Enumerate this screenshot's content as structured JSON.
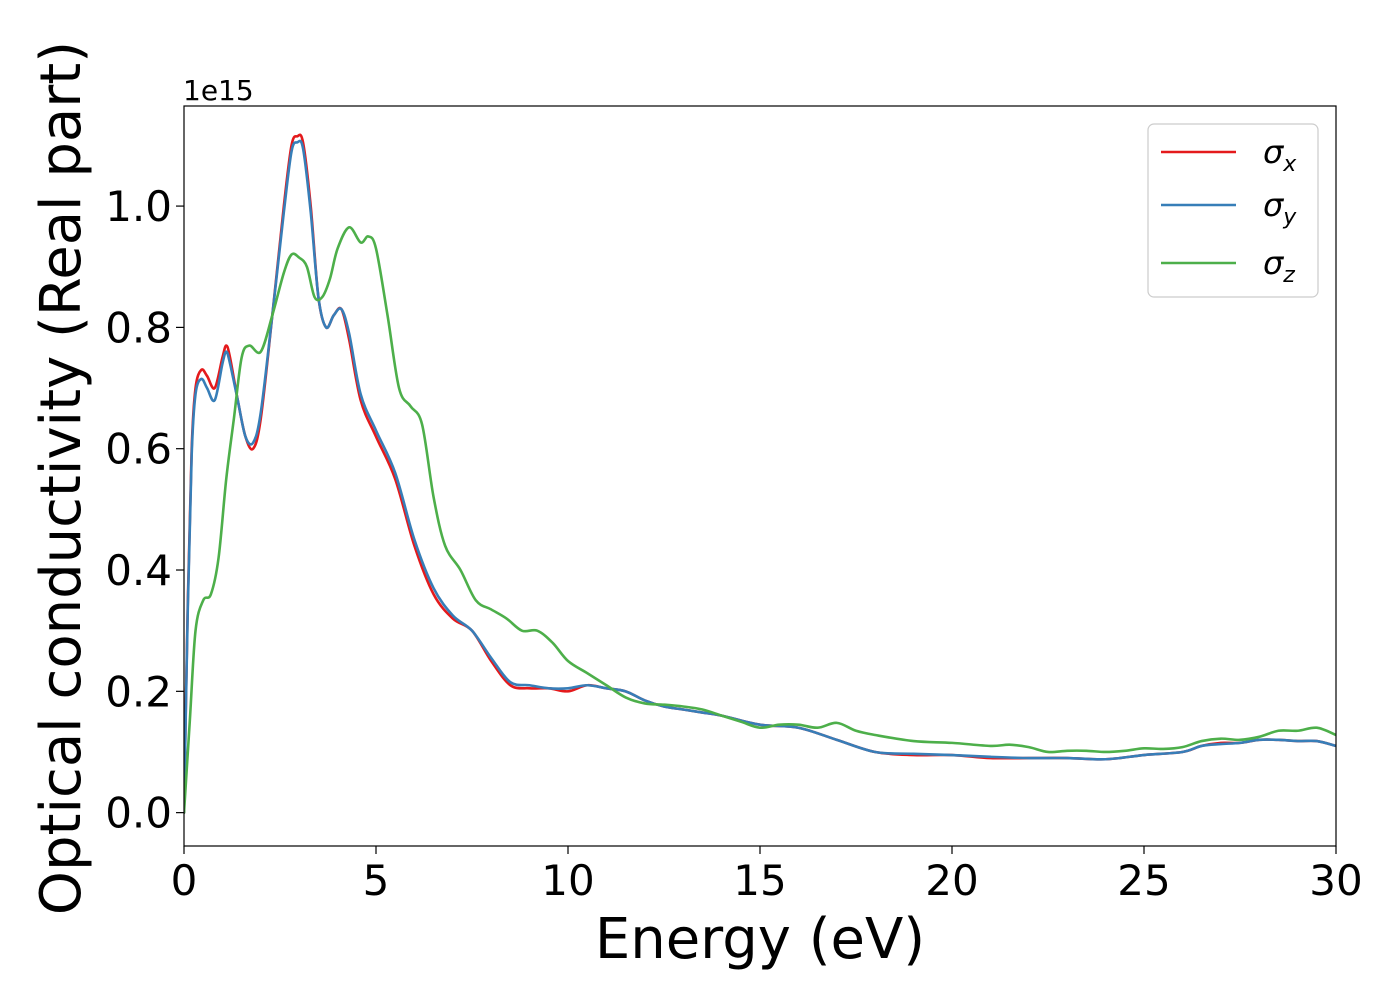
{
  "chart_data": {
    "type": "line",
    "xlabel": "Energy (eV)",
    "ylabel": "Optical conductivity (Real part)",
    "y_offset_text": "1e15",
    "xlim": [
      0,
      30
    ],
    "ylim": [
      -0.055,
      1.165
    ],
    "x_ticks": [
      0,
      5,
      10,
      15,
      20,
      25,
      30
    ],
    "x_tick_labels": [
      "0",
      "5",
      "10",
      "15",
      "20",
      "25",
      "30"
    ],
    "y_ticks": [
      0.0,
      0.2,
      0.4,
      0.6,
      0.8,
      1.0
    ],
    "y_tick_labels": [
      "0.0",
      "0.2",
      "0.4",
      "0.6",
      "0.8",
      "1.0"
    ],
    "grid": false,
    "legend_position": "top-right",
    "series": [
      {
        "name": "σx",
        "symbol": "σ",
        "subscript": "x",
        "color": "#e41a1c",
        "x": [
          0,
          0.1,
          0.2,
          0.3,
          0.45,
          0.6,
          0.8,
          1.0,
          1.1,
          1.2,
          1.4,
          1.6,
          1.8,
          2.0,
          2.3,
          2.6,
          2.8,
          2.95,
          3.1,
          3.3,
          3.5,
          3.7,
          3.9,
          4.1,
          4.3,
          4.6,
          5.0,
          5.5,
          6.0,
          6.5,
          7.0,
          7.5,
          8.0,
          8.5,
          9.0,
          9.5,
          10.0,
          10.5,
          11.0,
          11.5,
          12.0,
          12.5,
          13.0,
          13.5,
          14.0,
          15.0,
          16.0,
          17.0,
          18.0,
          19.0,
          20.0,
          21.0,
          22.0,
          23.0,
          24.0,
          25.0,
          26.0,
          26.5,
          27.0,
          27.5,
          28.0,
          28.5,
          29.0,
          29.5,
          30.0
        ],
        "y": [
          0.0,
          0.35,
          0.6,
          0.7,
          0.73,
          0.72,
          0.7,
          0.75,
          0.77,
          0.75,
          0.68,
          0.62,
          0.6,
          0.65,
          0.82,
          1.0,
          1.1,
          1.115,
          1.105,
          1.0,
          0.85,
          0.8,
          0.82,
          0.83,
          0.78,
          0.68,
          0.62,
          0.55,
          0.44,
          0.36,
          0.32,
          0.3,
          0.25,
          0.21,
          0.205,
          0.205,
          0.2,
          0.21,
          0.205,
          0.2,
          0.185,
          0.175,
          0.17,
          0.165,
          0.16,
          0.145,
          0.14,
          0.12,
          0.1,
          0.095,
          0.095,
          0.09,
          0.09,
          0.09,
          0.088,
          0.095,
          0.1,
          0.11,
          0.115,
          0.115,
          0.12,
          0.12,
          0.118,
          0.118,
          0.11
        ]
      },
      {
        "name": "σy",
        "symbol": "σ",
        "subscript": "y",
        "color": "#377eb8",
        "x": [
          0,
          0.1,
          0.2,
          0.3,
          0.45,
          0.6,
          0.8,
          1.0,
          1.1,
          1.2,
          1.4,
          1.6,
          1.8,
          2.0,
          2.3,
          2.6,
          2.8,
          2.95,
          3.1,
          3.3,
          3.5,
          3.7,
          3.9,
          4.1,
          4.3,
          4.6,
          5.0,
          5.5,
          6.0,
          6.5,
          7.0,
          7.5,
          8.0,
          8.5,
          9.0,
          9.5,
          10.0,
          10.5,
          11.0,
          11.5,
          12.0,
          12.5,
          13.0,
          13.5,
          14.0,
          15.0,
          16.0,
          17.0,
          18.0,
          19.0,
          20.0,
          21.0,
          22.0,
          23.0,
          24.0,
          25.0,
          26.0,
          26.5,
          27.0,
          27.5,
          28.0,
          28.5,
          29.0,
          29.5,
          30.0
        ],
        "y": [
          0.0,
          0.34,
          0.59,
          0.69,
          0.715,
          0.7,
          0.68,
          0.74,
          0.76,
          0.74,
          0.68,
          0.62,
          0.61,
          0.66,
          0.82,
          0.99,
          1.09,
          1.105,
          1.095,
          0.99,
          0.85,
          0.8,
          0.82,
          0.83,
          0.79,
          0.69,
          0.63,
          0.56,
          0.45,
          0.37,
          0.325,
          0.3,
          0.255,
          0.215,
          0.21,
          0.205,
          0.205,
          0.21,
          0.205,
          0.2,
          0.185,
          0.175,
          0.17,
          0.165,
          0.16,
          0.145,
          0.14,
          0.12,
          0.1,
          0.097,
          0.095,
          0.092,
          0.09,
          0.09,
          0.088,
          0.095,
          0.1,
          0.11,
          0.113,
          0.115,
          0.12,
          0.12,
          0.118,
          0.118,
          0.11
        ]
      },
      {
        "name": "σz",
        "symbol": "σ",
        "subscript": "z",
        "color": "#4daf4a",
        "x": [
          0,
          0.15,
          0.3,
          0.5,
          0.7,
          0.9,
          1.1,
          1.3,
          1.5,
          1.7,
          2.0,
          2.3,
          2.6,
          2.8,
          3.0,
          3.2,
          3.4,
          3.6,
          3.8,
          4.0,
          4.3,
          4.6,
          4.8,
          5.0,
          5.3,
          5.6,
          5.9,
          6.2,
          6.5,
          6.8,
          7.2,
          7.6,
          8.0,
          8.4,
          8.8,
          9.2,
          9.6,
          10.0,
          10.5,
          11.0,
          11.5,
          12.0,
          12.5,
          13.0,
          13.5,
          14.0,
          14.5,
          15.0,
          15.5,
          16.0,
          16.5,
          17.0,
          17.5,
          18.0,
          19.0,
          20.0,
          21.0,
          21.5,
          22.0,
          22.5,
          23.0,
          23.5,
          24.0,
          24.5,
          25.0,
          25.5,
          26.0,
          26.5,
          27.0,
          27.5,
          28.0,
          28.5,
          29.0,
          29.5,
          30.0
        ],
        "y": [
          0.0,
          0.15,
          0.3,
          0.35,
          0.36,
          0.42,
          0.55,
          0.65,
          0.75,
          0.77,
          0.76,
          0.82,
          0.89,
          0.92,
          0.915,
          0.9,
          0.85,
          0.85,
          0.88,
          0.93,
          0.965,
          0.94,
          0.95,
          0.93,
          0.82,
          0.7,
          0.67,
          0.64,
          0.52,
          0.44,
          0.4,
          0.35,
          0.335,
          0.32,
          0.3,
          0.3,
          0.28,
          0.25,
          0.23,
          0.21,
          0.19,
          0.18,
          0.178,
          0.175,
          0.17,
          0.16,
          0.15,
          0.14,
          0.145,
          0.145,
          0.14,
          0.148,
          0.135,
          0.128,
          0.118,
          0.115,
          0.11,
          0.112,
          0.108,
          0.1,
          0.102,
          0.102,
          0.1,
          0.102,
          0.106,
          0.105,
          0.108,
          0.118,
          0.122,
          0.12,
          0.125,
          0.135,
          0.135,
          0.14,
          0.128
        ]
      }
    ]
  }
}
